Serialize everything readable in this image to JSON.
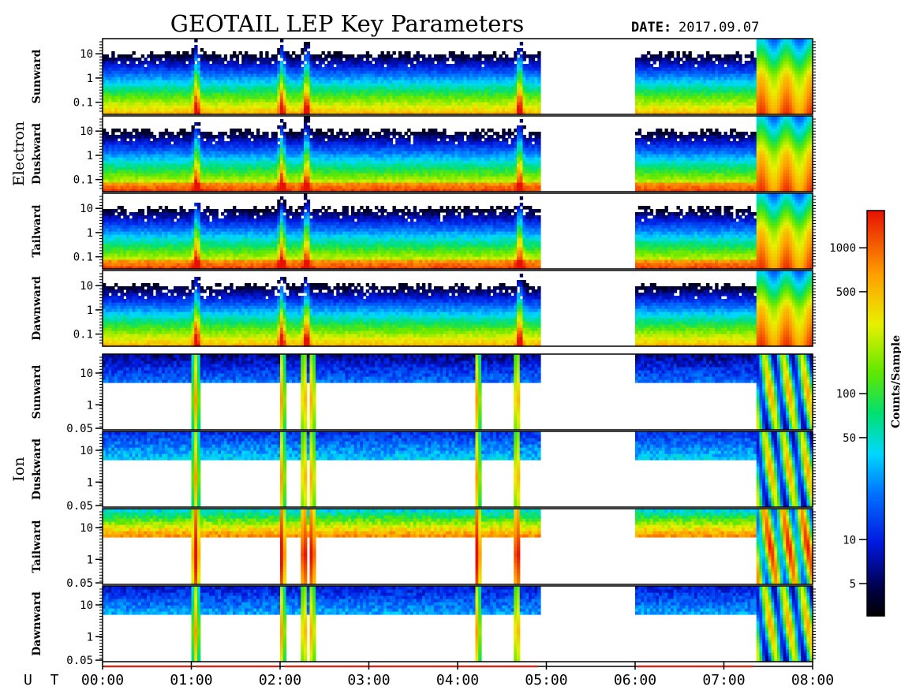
{
  "title": "GEOTAIL LEP Key Parameters",
  "date_label": "DATE:",
  "date_value": "2017.09.07",
  "chart_data": {
    "type": "heatmap",
    "x_axis_label": "U T",
    "x_ticks": [
      "00:00",
      "01:00",
      "02:00",
      "03:00",
      "04:00",
      "05:00",
      "06:00",
      "07:00",
      "08:00"
    ],
    "x_range_hours": [
      0,
      8
    ],
    "data_gap_hours": [
      4.93,
      6.0
    ],
    "groups": [
      {
        "name": "Electron",
        "panels": [
          {
            "name": "Sunward",
            "y_ticks": [
              "10",
              "1",
              "0.1"
            ]
          },
          {
            "name": "Duskward",
            "y_ticks": [
              "10",
              "1",
              "0.1"
            ]
          },
          {
            "name": "Tailward",
            "y_ticks": [
              "10",
              "1",
              "0.1"
            ]
          },
          {
            "name": "Dawnward",
            "y_ticks": [
              "10",
              "1",
              "0.1"
            ]
          }
        ]
      },
      {
        "name": "Ion",
        "panels": [
          {
            "name": "Sunward",
            "y_ticks": [
              "10",
              "1",
              "0.05"
            ]
          },
          {
            "name": "Duskward",
            "y_ticks": [
              "10",
              "1",
              "0.05"
            ]
          },
          {
            "name": "Tailward",
            "y_ticks": [
              "10",
              "1",
              "0.05"
            ]
          },
          {
            "name": "Dawnward",
            "y_ticks": [
              "10",
              "1",
              "0.05"
            ]
          }
        ]
      }
    ],
    "colorbar": {
      "label": "Counts/Sample",
      "scale": "log",
      "range": [
        3,
        1800
      ],
      "ticks": [
        {
          "value": 1000,
          "label": "1000"
        },
        {
          "value": 500,
          "label": "500"
        },
        {
          "value": 100,
          "label": "100"
        },
        {
          "value": 50,
          "label": "50"
        },
        {
          "value": 10,
          "label": "10"
        },
        {
          "value": 5,
          "label": "5"
        }
      ]
    }
  }
}
